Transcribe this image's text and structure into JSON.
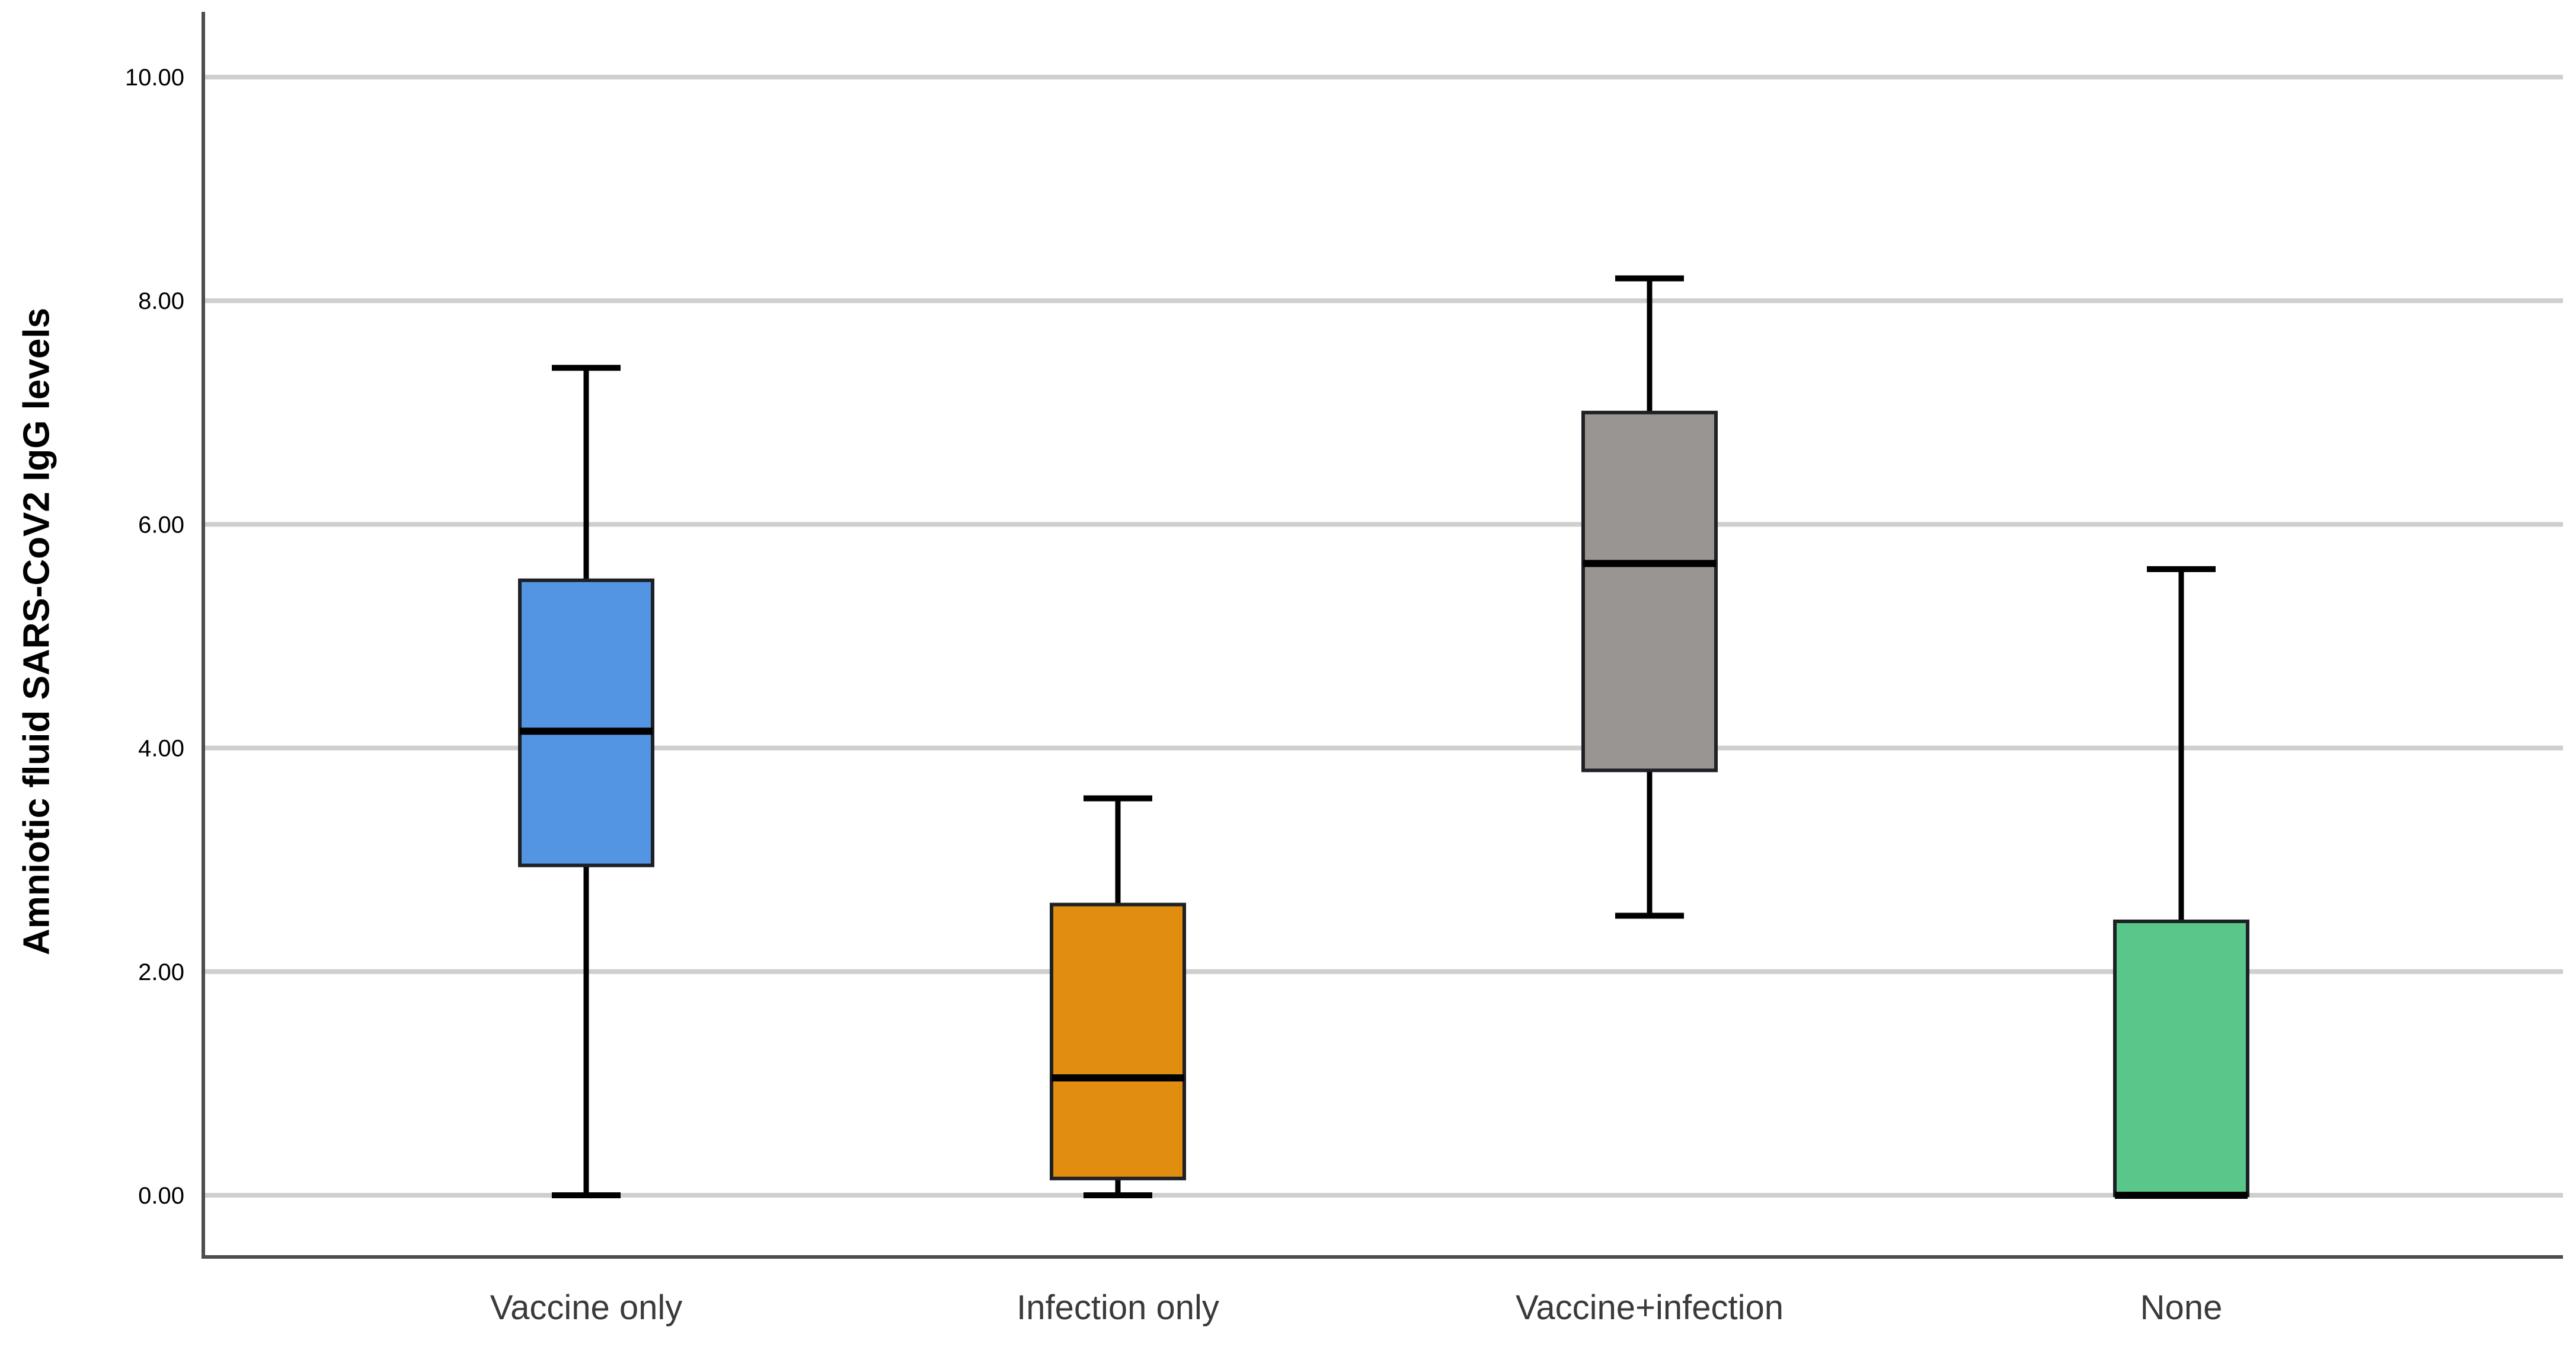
{
  "chart_data": {
    "type": "boxplot",
    "title": "",
    "ylabel": "Amniotic fluid SARS-CoV2 IgG levels",
    "xlabel": "",
    "ylim": [
      -0.55,
      10.6
    ],
    "grid": "horizontal-only",
    "legend": "none",
    "yticks": [
      0,
      2,
      4,
      6,
      8,
      10
    ],
    "ytick_labels": [
      "0.00",
      "2.00",
      "4.00",
      "6.00",
      "8.00",
      "10.00"
    ],
    "categories": [
      "Vaccine only",
      "Infection only",
      "Vaccine+infection",
      "None"
    ],
    "series": [
      {
        "name": "Vaccine only",
        "min": 0.0,
        "q1": 2.95,
        "median": 4.15,
        "q3": 5.5,
        "max": 7.4,
        "color": "#5394E3"
      },
      {
        "name": "Infection only",
        "min": 0.0,
        "q1": 0.15,
        "median": 1.05,
        "q3": 2.6,
        "max": 3.55,
        "color": "#E18D10"
      },
      {
        "name": "Vaccine+infection",
        "min": 2.5,
        "q1": 3.8,
        "median": 5.65,
        "q3": 7.0,
        "max": 8.2,
        "color": "#999593"
      },
      {
        "name": "None",
        "min": 0.0,
        "q1": 0.0,
        "median": 0.0,
        "q3": 2.45,
        "max": 5.6,
        "color": "#5AC78A"
      }
    ],
    "colors": {
      "box_border": "#1d2126",
      "median_line": "#000000",
      "whisker": "#000000",
      "gridline": "#cfcfcf",
      "axis": "#4d4d4d",
      "tick_label": "#000000",
      "category_label": "#3a3a3a",
      "background": "#ffffff"
    }
  }
}
